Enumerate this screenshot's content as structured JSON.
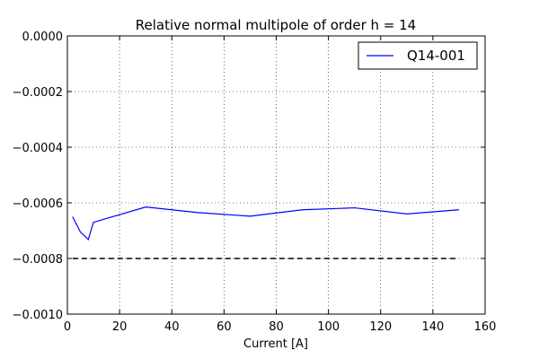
{
  "chart_data": {
    "type": "line",
    "title": "Relative normal multipole of order h = 14",
    "xlabel": "Current [A]",
    "ylabel": "",
    "xlim": [
      0,
      160
    ],
    "ylim": [
      -0.001,
      0.0
    ],
    "xticks": [
      0,
      20,
      40,
      60,
      80,
      100,
      120,
      140,
      160
    ],
    "xtick_labels": [
      "0",
      "20",
      "40",
      "60",
      "80",
      "100",
      "120",
      "140",
      "160"
    ],
    "yticks": [
      0.0,
      -0.0002,
      -0.0004,
      -0.0006,
      -0.0008,
      -0.001
    ],
    "ytick_labels": [
      "0.0000",
      "−0.0002",
      "−0.0004",
      "−0.0006",
      "−0.0008",
      "−0.0010"
    ],
    "grid": true,
    "legend_position": "top-right",
    "series": [
      {
        "name": "Q14-001",
        "color": "#0000ff",
        "style": "solid",
        "x": [
          2,
          5,
          8,
          10,
          30,
          50,
          70,
          90,
          110,
          130,
          150
        ],
        "y": [
          -0.00065,
          -0.000705,
          -0.000732,
          -0.00067,
          -0.000615,
          -0.000635,
          -0.000648,
          -0.000625,
          -0.000618,
          -0.00064,
          -0.000625
        ]
      },
      {
        "color": "#000000",
        "style": "dashed",
        "x": [
          2,
          150
        ],
        "y": [
          -0.0008,
          -0.0008
        ]
      }
    ]
  }
}
